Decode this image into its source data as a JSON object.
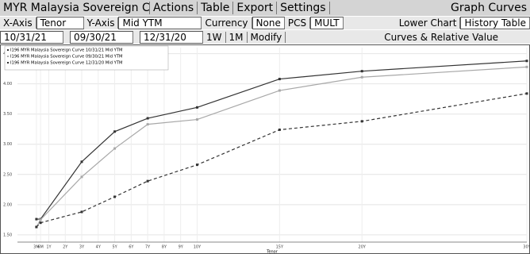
{
  "toolbar": {
    "title": "MYR Malaysia Sovereign Cu",
    "actions": "Actions",
    "table": "Table",
    "export": "Export",
    "settings": "Settings",
    "graph": "Graph Curves",
    "x_axis_label": "X-Axis",
    "x_axis_value": "Tenor",
    "y_axis_label": "Y-Axis",
    "y_axis_value": "Mid YTM",
    "currency_label": "Currency",
    "currency_value": "None",
    "pcs": "PCS",
    "pcs_value": "MULT",
    "lower_chart": "Lower Chart",
    "lower_chart_value": "History Table",
    "dates": [
      "10/31/21",
      "09/30/21",
      "12/31/20"
    ],
    "w1": "1W",
    "m1": "1M",
    "modify": "Modify",
    "section": "Curves & Relative Value"
  },
  "chart_data": {
    "type": "line",
    "x_label": "Tenor",
    "x": [
      0.25,
      0.5,
      3,
      5,
      7,
      10,
      15,
      20,
      30
    ],
    "xlim": [
      -0.9,
      30
    ],
    "xticks": [
      {
        "value": 0.25,
        "label": "3M"
      },
      {
        "value": 0.5,
        "label": "6M"
      },
      {
        "value": 1,
        "label": "1Y"
      },
      {
        "value": 2,
        "label": "2Y"
      },
      {
        "value": 3,
        "label": "3Y"
      },
      {
        "value": 4,
        "label": "4Y"
      },
      {
        "value": 5,
        "label": "5Y"
      },
      {
        "value": 6,
        "label": "6Y"
      },
      {
        "value": 7,
        "label": "7Y"
      },
      {
        "value": 8,
        "label": "8Y"
      },
      {
        "value": 9,
        "label": "9Y"
      },
      {
        "value": 10,
        "label": "10Y"
      },
      {
        "value": 15,
        "label": "15Y"
      },
      {
        "value": 20,
        "label": "20Y"
      },
      {
        "value": 30,
        "label": "30Y"
      }
    ],
    "ylim": [
      1.38,
      4.6
    ],
    "yticks": [
      {
        "value": 1.5,
        "label": "1.50"
      },
      {
        "value": 2,
        "label": "2.00"
      },
      {
        "value": 2.5,
        "label": "2.50"
      },
      {
        "value": 3,
        "label": "3.00"
      },
      {
        "value": 3.5,
        "label": "3.50"
      },
      {
        "value": 4,
        "label": "4.00"
      },
      {
        "value": 4.5,
        "label": "4.50"
      }
    ],
    "grid": true,
    "legend": "top-left",
    "series": [
      {
        "name": "I196 MYR Malaysia Sovereign Curve 10/31/21 Mid YTM",
        "color": "#333333",
        "dash": false,
        "values": [
          1.76,
          1.76,
          2.71,
          3.21,
          3.43,
          3.61,
          4.08,
          4.21,
          4.38
        ]
      },
      {
        "name": "I196 MYR Malaysia Sovereign Curve 09/30/21 Mid YTM",
        "color": "#a8a8a8",
        "dash": false,
        "values": [
          1.63,
          1.75,
          2.46,
          2.93,
          3.33,
          3.41,
          3.89,
          4.11,
          4.28
        ]
      },
      {
        "name": "I196 MYR Malaysia Sovereign Curve 12/31/20 Mid YTM",
        "color": "#333333",
        "dash": true,
        "values": [
          1.63,
          1.7,
          1.88,
          2.13,
          2.39,
          2.66,
          3.24,
          3.38,
          3.84
        ]
      }
    ]
  }
}
